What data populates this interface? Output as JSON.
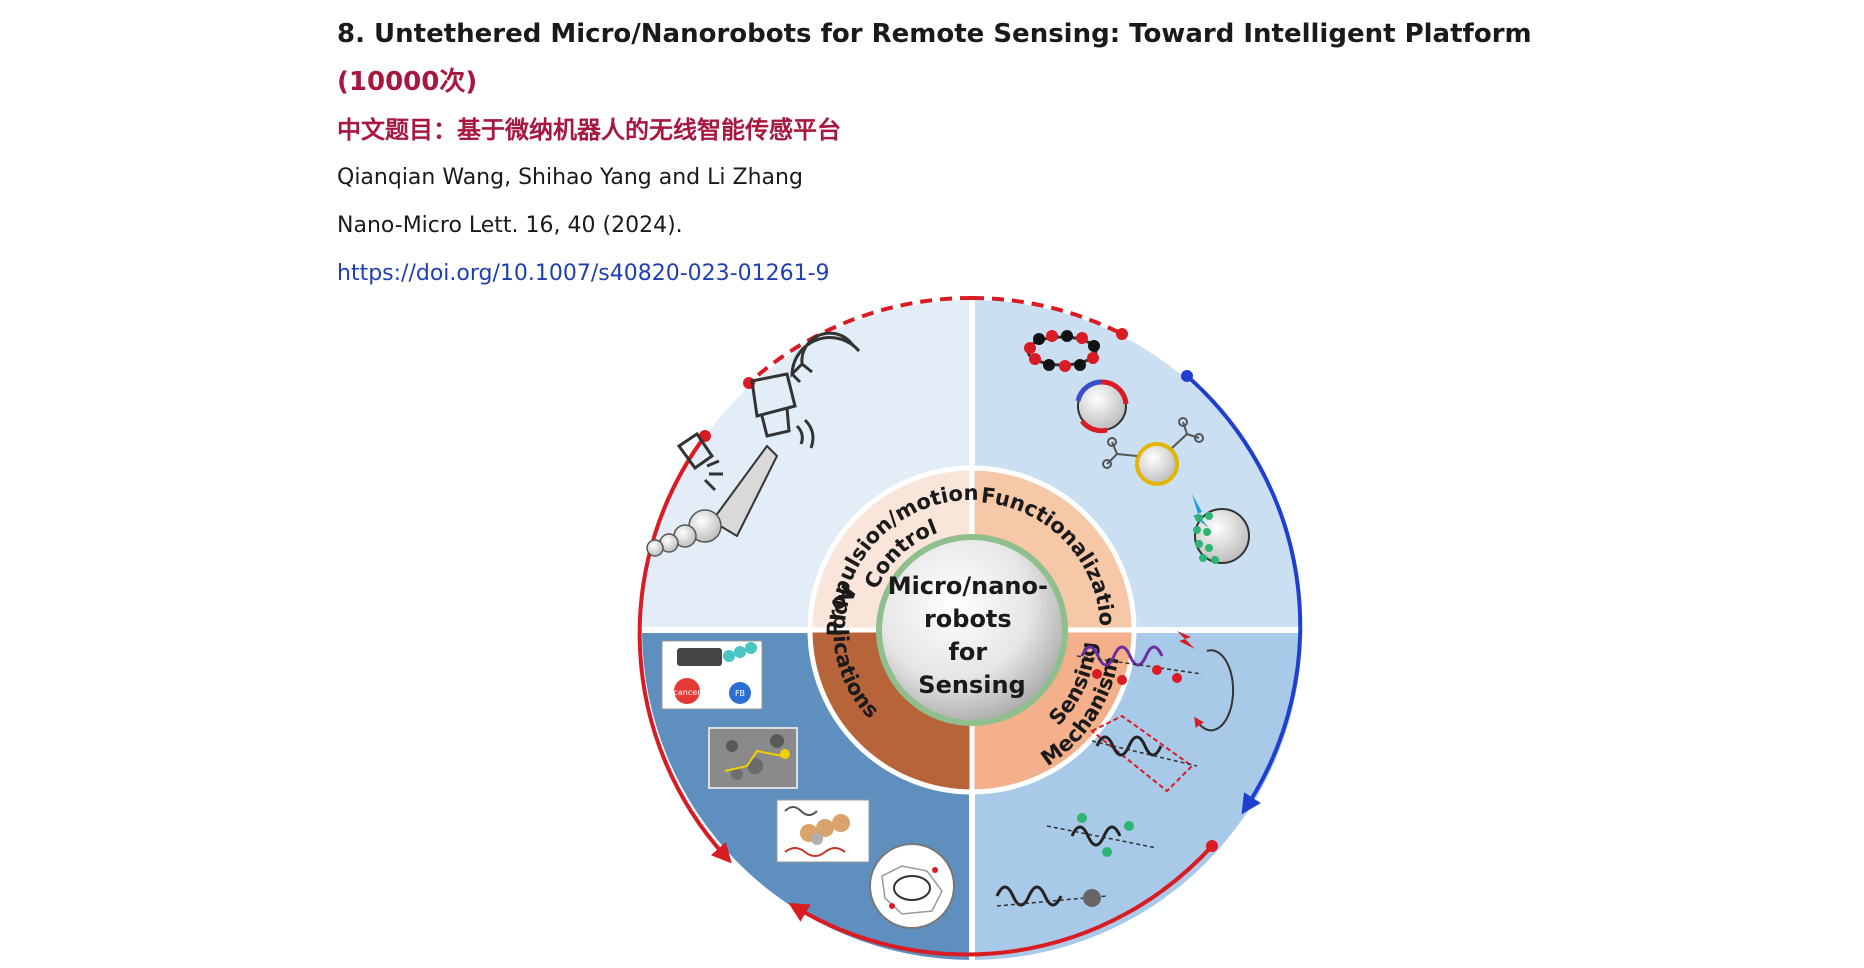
{
  "article": {
    "heading": "8. Untethered Micro/Nanorobots for Remote Sensing: Toward Intelligent Platform",
    "views": "(10000次)",
    "chinese_title": "中文题目：基于微纳机器人的无线智能传感平台",
    "authors": "Qianqian Wang, Shihao Yang and Li Zhang",
    "citation": "Nano-Micro Lett. 16, 40 (2024).",
    "doi": "https://doi.org/10.1007/s40820-023-01261-9"
  },
  "figure": {
    "center_lines": [
      "Micro/nano-",
      "robots",
      "for",
      "Sensing"
    ],
    "segments": {
      "propulsion": "Propulsion/motion",
      "control": "Control",
      "functionalization": "Functionalization",
      "applications": "Applications",
      "sensing": "Sensing",
      "mechanism": "Mechanism"
    },
    "small_labels": {
      "red_cell": "cancer",
      "blue_cell": "FB"
    },
    "colors": {
      "red_arc": "#d91c24",
      "blue_arc": "#1f3fd1",
      "quad_top_left": "#e3edf7",
      "quad_top_right": "#cadff2",
      "quad_bottom_left": "#5f8fbf",
      "quad_bottom_right": "#a9c9e8",
      "seg_propulsion": "#f9e5da",
      "seg_functionalization": "#f6c8a8",
      "seg_applications": "#b8643a",
      "seg_sensing": "#f3b08a"
    }
  }
}
